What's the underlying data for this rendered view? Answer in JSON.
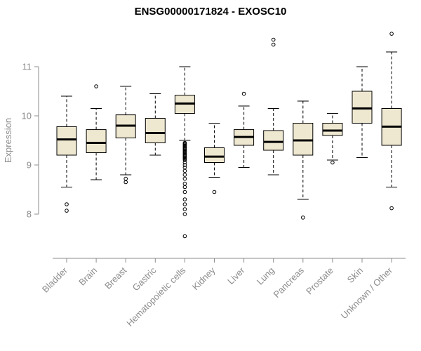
{
  "chart_data": {
    "type": "boxplot",
    "title": "ENSG00000171824 - EXOSC10",
    "xlabel": "",
    "ylabel": "Expression",
    "y_ticks": [
      8,
      9,
      10,
      11
    ],
    "ylim": [
      7.4,
      11.8
    ],
    "grid": false,
    "legend": "none",
    "colors": {
      "box_fill": "#EFE8D1",
      "box_stroke": "#000000",
      "median": "#000000",
      "axis": "#8C8C8C",
      "tick_label": "#8C8C8C",
      "title": "#000000"
    },
    "categories": [
      "Bladder",
      "Brain",
      "Breast",
      "Gastric",
      "Hematopoietic cells",
      "Kidney",
      "Liver",
      "Lung",
      "Pancreas",
      "Prostate",
      "Skin",
      "Unknown / Other"
    ],
    "series": [
      {
        "name": "Bladder",
        "min": 8.55,
        "q1": 9.2,
        "median": 9.52,
        "q3": 9.78,
        "max": 10.4,
        "outliers": [
          8.2,
          8.07
        ]
      },
      {
        "name": "Brain",
        "min": 8.7,
        "q1": 9.25,
        "median": 9.45,
        "q3": 9.72,
        "max": 10.15,
        "outliers": [
          10.6
        ]
      },
      {
        "name": "Breast",
        "min": 8.8,
        "q1": 9.55,
        "median": 9.8,
        "q3": 10.02,
        "max": 10.6,
        "outliers": [
          8.72,
          8.65
        ]
      },
      {
        "name": "Gastric",
        "min": 9.2,
        "q1": 9.45,
        "median": 9.65,
        "q3": 9.95,
        "max": 10.45,
        "outliers": []
      },
      {
        "name": "Hematopoietic cells",
        "min": 9.5,
        "q1": 10.05,
        "median": 10.25,
        "q3": 10.42,
        "max": 11.0,
        "outliers": [
          9.45,
          9.44,
          9.42,
          9.41,
          9.39,
          9.38,
          9.36,
          9.35,
          9.33,
          9.32,
          9.3,
          9.29,
          9.27,
          9.26,
          9.24,
          9.23,
          9.21,
          9.2,
          9.18,
          9.17,
          9.15,
          9.14,
          9.12,
          9.1,
          9.05,
          9.0,
          8.95,
          8.88,
          8.8,
          8.72,
          8.62,
          8.55,
          8.45,
          8.3,
          8.2,
          8.1,
          8.0,
          7.55
        ]
      },
      {
        "name": "Kidney",
        "min": 8.75,
        "q1": 9.05,
        "median": 9.17,
        "q3": 9.35,
        "max": 9.85,
        "outliers": [
          8.45
        ]
      },
      {
        "name": "Liver",
        "min": 8.95,
        "q1": 9.4,
        "median": 9.57,
        "q3": 9.72,
        "max": 10.2,
        "outliers": [
          10.45
        ]
      },
      {
        "name": "Lung",
        "min": 8.8,
        "q1": 9.3,
        "median": 9.47,
        "q3": 9.7,
        "max": 10.15,
        "outliers": [
          11.55,
          11.45
        ]
      },
      {
        "name": "Pancreas",
        "min": 8.3,
        "q1": 9.2,
        "median": 9.5,
        "q3": 9.85,
        "max": 10.3,
        "outliers": [
          7.93
        ]
      },
      {
        "name": "Prostate",
        "min": 9.1,
        "q1": 9.6,
        "median": 9.7,
        "q3": 9.85,
        "max": 10.05,
        "outliers": [
          9.05
        ]
      },
      {
        "name": "Skin",
        "min": 9.15,
        "q1": 9.85,
        "median": 10.15,
        "q3": 10.5,
        "max": 11.0,
        "outliers": []
      },
      {
        "name": "Unknown / Other",
        "min": 8.55,
        "q1": 9.4,
        "median": 9.78,
        "q3": 10.15,
        "max": 11.3,
        "outliers": [
          11.67,
          8.12
        ]
      }
    ]
  }
}
